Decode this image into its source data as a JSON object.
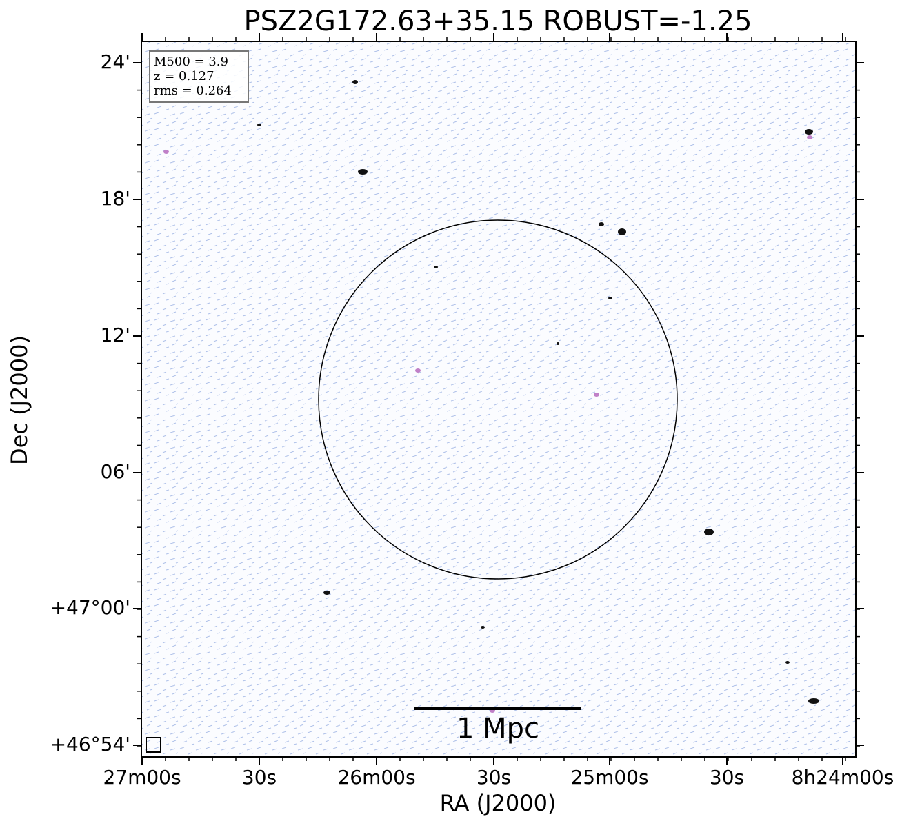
{
  "title": "PSZ2G172.63+35.15 ROBUST=-1.25",
  "x_axis": {
    "label": "RA (J2000)",
    "ticks": [
      "27m00s",
      "30s",
      "26m00s",
      "30s",
      "25m00s",
      "30s",
      "8h24m00s"
    ]
  },
  "y_axis": {
    "label": "Dec (J2000)",
    "ticks": [
      "24'",
      "18'",
      "12'",
      "06'",
      "+47°00'",
      "+46°54'"
    ]
  },
  "info_box": [
    "M500 = 3.9",
    "z = 0.127",
    "rms = 0.264"
  ],
  "scale_bar": "1 Mpc"
}
